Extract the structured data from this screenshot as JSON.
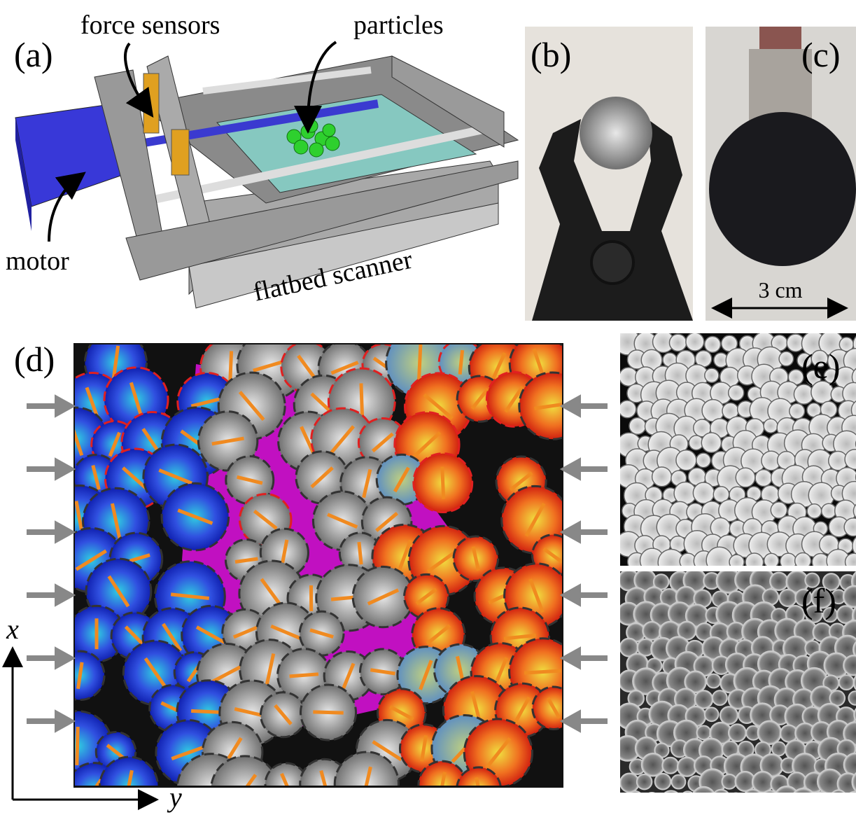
{
  "panels": {
    "a": {
      "label": "(a)",
      "annotations": [
        "force sensors",
        "particles",
        "motor",
        "flatbed scanner"
      ]
    },
    "b": {
      "label": "(b)"
    },
    "c": {
      "label": "(c)",
      "scale_bar": "3 cm"
    },
    "d": {
      "label": "(d)",
      "axes": [
        "x",
        "y"
      ]
    },
    "e": {
      "label": "(e)"
    },
    "f": {
      "label": "(f)"
    }
  }
}
